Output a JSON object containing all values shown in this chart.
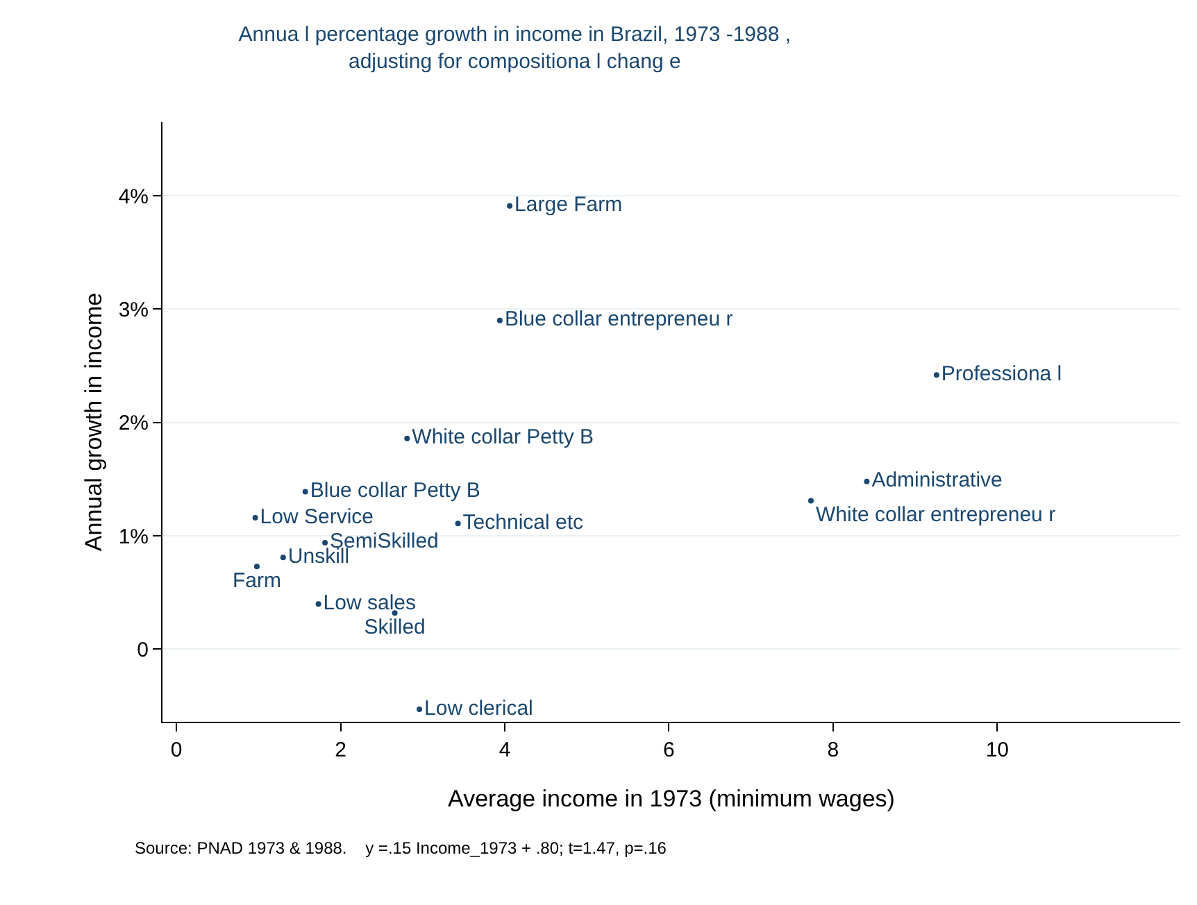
{
  "chart_data": {
    "type": "scatter",
    "title": "Annua l percentage growth in income in Brazil, 1973 -1988 ,\nadjusting for compositiona l chang e",
    "xlabel": "Average income in 1973 (minimum wages)",
    "ylabel": "Annual growth in income",
    "annotations": [
      "Source: PNAD 1973 & 1988.    y =.15 Income_1973 + .80; t=1.47, p=.16"
    ],
    "xlim": [
      -0.17,
      12.23
    ],
    "xticks": [
      0,
      2,
      4,
      6,
      8,
      10
    ],
    "ylim": [
      -0.64,
      4.65
    ],
    "yticks": [
      {
        "value": 0,
        "label": "0"
      },
      {
        "value": 1,
        "label": "1%"
      },
      {
        "value": 2,
        "label": "2%"
      },
      {
        "value": 3,
        "label": "3%"
      },
      {
        "value": 4,
        "label": "4%"
      }
    ],
    "grid": "y",
    "legend": false,
    "marker": "circle",
    "series": [
      {
        "name": "Large Farm",
        "color": "#1a476f",
        "x": [
          4.06
        ],
        "values": [
          3.91
        ]
      },
      {
        "name": "Blue collar entrepreneu r",
        "color": "#1a476f",
        "x": [
          3.94
        ],
        "values": [
          2.9
        ]
      },
      {
        "name": "Professiona l",
        "color": "#1a476f",
        "x": [
          9.26
        ],
        "values": [
          2.42
        ]
      },
      {
        "name": "White collar Petty B",
        "color": "#1a476f",
        "x": [
          2.81
        ],
        "values": [
          1.86
        ]
      },
      {
        "name": "Administrative",
        "color": "#1a476f",
        "x": [
          8.41
        ],
        "values": [
          1.48
        ]
      },
      {
        "name": "White collar entrepreneu r",
        "color": "#1a476f",
        "x": [
          7.73
        ],
        "values": [
          1.31
        ]
      },
      {
        "name": "Blue collar Petty B",
        "color": "#1a476f",
        "x": [
          1.57
        ],
        "values": [
          1.39
        ]
      },
      {
        "name": "Low Service",
        "color": "#1a476f",
        "x": [
          0.96
        ],
        "values": [
          1.16
        ]
      },
      {
        "name": "Technical etc",
        "color": "#1a476f",
        "x": [
          3.43
        ],
        "values": [
          1.11
        ]
      },
      {
        "name": "SemiSkilled",
        "color": "#1a476f",
        "x": [
          1.81
        ],
        "values": [
          0.94
        ]
      },
      {
        "name": "Unskill",
        "color": "#1a476f",
        "x": [
          1.3
        ],
        "values": [
          0.81
        ]
      },
      {
        "name": "Farm",
        "color": "#1a476f",
        "x": [
          0.98
        ],
        "values": [
          0.73
        ]
      },
      {
        "name": "Low sales",
        "color": "#1a476f",
        "x": [
          1.73
        ],
        "values": [
          0.4
        ]
      },
      {
        "name": "Skilled",
        "color": "#1a476f",
        "x": [
          2.66
        ],
        "values": [
          0.32
        ]
      },
      {
        "name": "Low clerical",
        "color": "#1a476f",
        "x": [
          2.96
        ],
        "values": [
          -0.53
        ]
      }
    ]
  }
}
